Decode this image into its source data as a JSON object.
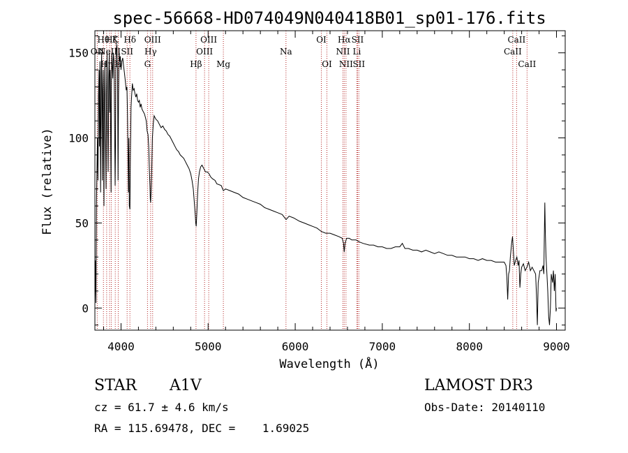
{
  "chart_data": {
    "type": "line",
    "title": "spec-56668-HD074049N040418B01_sp01-176.fits",
    "xlabel": "Wavelength (Å)",
    "ylabel": "Flux (relative)",
    "xlim": [
      3700,
      9100
    ],
    "ylim": [
      -13,
      163
    ],
    "xticks": [
      4000,
      5000,
      6000,
      7000,
      8000,
      9000
    ],
    "yticks": [
      0,
      50,
      100,
      150
    ],
    "line_color": "#000000",
    "marker_color": "#b22222",
    "spectral_lines": [
      {
        "w": 3727,
        "label": "OII",
        "row": 2
      },
      {
        "w": 3798,
        "label": "Hθ",
        "row": 1
      },
      {
        "w": 3835,
        "label": "Hη",
        "row": 3
      },
      {
        "w": 3869,
        "label": "NeIII",
        "row": 2
      },
      {
        "w": 3889,
        "label": "Hζ",
        "row": 1
      },
      {
        "w": 3934,
        "label": "K",
        "row": 1
      },
      {
        "w": 3968,
        "label": "H",
        "row": 3
      },
      {
        "w": 4070,
        "label": "SII",
        "row": 2
      },
      {
        "w": 4102,
        "label": "Hδ",
        "row": 1
      },
      {
        "w": 4304,
        "label": "G",
        "row": 3
      },
      {
        "w": 4340,
        "label": "Hγ",
        "row": 2
      },
      {
        "w": 4363,
        "label": "OIII",
        "row": 1
      },
      {
        "w": 4861,
        "label": "Hβ",
        "row": 3
      },
      {
        "w": 4959,
        "label": "OIII",
        "row": 2
      },
      {
        "w": 5007,
        "label": "OIII",
        "row": 1
      },
      {
        "w": 5175,
        "label": "Mg",
        "row": 3
      },
      {
        "w": 5894,
        "label": "Na",
        "row": 2
      },
      {
        "w": 6300,
        "label": "OI",
        "row": 1
      },
      {
        "w": 6364,
        "label": "OI",
        "row": 3
      },
      {
        "w": 6548,
        "label": "NII",
        "row": 2
      },
      {
        "w": 6563,
        "label": "Hα",
        "row": 1
      },
      {
        "w": 6583,
        "label": "NII",
        "row": 3
      },
      {
        "w": 6708,
        "label": "Li",
        "row": 2
      },
      {
        "w": 6716,
        "label": "SII",
        "row": 1
      },
      {
        "w": 6731,
        "label": "SII",
        "row": 3
      },
      {
        "w": 8498,
        "label": "CaII",
        "row": 2
      },
      {
        "w": 8542,
        "label": "CaII",
        "row": 1
      },
      {
        "w": 8662,
        "label": "CaII",
        "row": 3
      }
    ],
    "spectrum": [
      [
        3700,
        5
      ],
      [
        3705,
        28
      ],
      [
        3712,
        3
      ],
      [
        3718,
        60
      ],
      [
        3725,
        85
      ],
      [
        3730,
        100
      ],
      [
        3735,
        75
      ],
      [
        3742,
        125
      ],
      [
        3748,
        140
      ],
      [
        3752,
        95
      ],
      [
        3758,
        145
      ],
      [
        3762,
        105
      ],
      [
        3766,
        68
      ],
      [
        3772,
        138
      ],
      [
        3778,
        150
      ],
      [
        3782,
        110
      ],
      [
        3786,
        75
      ],
      [
        3790,
        128
      ],
      [
        3795,
        140
      ],
      [
        3800,
        88
      ],
      [
        3804,
        60
      ],
      [
        3808,
        118
      ],
      [
        3815,
        145
      ],
      [
        3822,
        100
      ],
      [
        3828,
        70
      ],
      [
        3834,
        125
      ],
      [
        3840,
        150
      ],
      [
        3846,
        108
      ],
      [
        3852,
        80
      ],
      [
        3858,
        135
      ],
      [
        3865,
        150
      ],
      [
        3870,
        115
      ],
      [
        3876,
        140
      ],
      [
        3882,
        95
      ],
      [
        3886,
        68
      ],
      [
        3890,
        130
      ],
      [
        3895,
        150
      ],
      [
        3900,
        142
      ],
      [
        3906,
        135
      ],
      [
        3912,
        150
      ],
      [
        3920,
        145
      ],
      [
        3926,
        110
      ],
      [
        3932,
        72
      ],
      [
        3936,
        95
      ],
      [
        3940,
        140
      ],
      [
        3946,
        152
      ],
      [
        3952,
        155
      ],
      [
        3960,
        140
      ],
      [
        3966,
        75
      ],
      [
        3972,
        125
      ],
      [
        3978,
        150
      ],
      [
        3985,
        145
      ],
      [
        3992,
        148
      ],
      [
        4000,
        140
      ],
      [
        4010,
        145
      ],
      [
        4020,
        147
      ],
      [
        4030,
        142
      ],
      [
        4040,
        138
      ],
      [
        4050,
        133
      ],
      [
        4060,
        128
      ],
      [
        4068,
        130
      ],
      [
        4074,
        115
      ],
      [
        4080,
        92
      ],
      [
        4085,
        68
      ],
      [
        4090,
        100
      ],
      [
        4095,
        60
      ],
      [
        4102,
        58
      ],
      [
        4108,
        90
      ],
      [
        4115,
        118
      ],
      [
        4122,
        125
      ],
      [
        4130,
        132
      ],
      [
        4140,
        128
      ],
      [
        4150,
        129
      ],
      [
        4160,
        126
      ],
      [
        4170,
        124
      ],
      [
        4180,
        126
      ],
      [
        4190,
        122
      ],
      [
        4200,
        121
      ],
      [
        4210,
        122
      ],
      [
        4220,
        118
      ],
      [
        4230,
        120
      ],
      [
        4240,
        117
      ],
      [
        4250,
        116
      ],
      [
        4260,
        115
      ],
      [
        4270,
        114
      ],
      [
        4280,
        112
      ],
      [
        4290,
        110
      ],
      [
        4300,
        104
      ],
      [
        4310,
        102
      ],
      [
        4318,
        95
      ],
      [
        4325,
        82
      ],
      [
        4332,
        72
      ],
      [
        4336,
        64
      ],
      [
        4340,
        62
      ],
      [
        4345,
        68
      ],
      [
        4352,
        80
      ],
      [
        4360,
        100
      ],
      [
        4370,
        108
      ],
      [
        4380,
        113
      ],
      [
        4390,
        112
      ],
      [
        4400,
        111
      ],
      [
        4420,
        110
      ],
      [
        4440,
        108
      ],
      [
        4460,
        106
      ],
      [
        4480,
        107
      ],
      [
        4500,
        105
      ],
      [
        4520,
        104
      ],
      [
        4540,
        102
      ],
      [
        4560,
        101
      ],
      [
        4580,
        99
      ],
      [
        4600,
        97
      ],
      [
        4620,
        95
      ],
      [
        4640,
        93
      ],
      [
        4660,
        92
      ],
      [
        4680,
        90
      ],
      [
        4700,
        89
      ],
      [
        4720,
        88
      ],
      [
        4740,
        86
      ],
      [
        4760,
        84
      ],
      [
        4780,
        82
      ],
      [
        4800,
        79
      ],
      [
        4815,
        75
      ],
      [
        4830,
        70
      ],
      [
        4842,
        62
      ],
      [
        4852,
        55
      ],
      [
        4858,
        50
      ],
      [
        4863,
        48
      ],
      [
        4870,
        55
      ],
      [
        4880,
        68
      ],
      [
        4890,
        76
      ],
      [
        4900,
        80
      ],
      [
        4915,
        83
      ],
      [
        4930,
        84
      ],
      [
        4950,
        82
      ],
      [
        4970,
        80
      ],
      [
        4990,
        80
      ],
      [
        5010,
        79
      ],
      [
        5030,
        77
      ],
      [
        5050,
        76
      ],
      [
        5080,
        75
      ],
      [
        5100,
        73
      ],
      [
        5150,
        72
      ],
      [
        5175,
        69
      ],
      [
        5200,
        70
      ],
      [
        5250,
        69
      ],
      [
        5300,
        68
      ],
      [
        5350,
        67
      ],
      [
        5400,
        65
      ],
      [
        5450,
        64
      ],
      [
        5500,
        63
      ],
      [
        5550,
        62
      ],
      [
        5600,
        61
      ],
      [
        5650,
        59
      ],
      [
        5700,
        58
      ],
      [
        5750,
        57
      ],
      [
        5800,
        56
      ],
      [
        5850,
        55
      ],
      [
        5895,
        52
      ],
      [
        5930,
        54
      ],
      [
        5980,
        53
      ],
      [
        6050,
        51
      ],
      [
        6100,
        50
      ],
      [
        6150,
        49
      ],
      [
        6200,
        48
      ],
      [
        6250,
        47
      ],
      [
        6300,
        45
      ],
      [
        6350,
        44
      ],
      [
        6400,
        44
      ],
      [
        6450,
        43
      ],
      [
        6500,
        42
      ],
      [
        6540,
        41
      ],
      [
        6555,
        38
      ],
      [
        6563,
        33
      ],
      [
        6572,
        38
      ],
      [
        6590,
        41
      ],
      [
        6620,
        41
      ],
      [
        6650,
        40
      ],
      [
        6700,
        40
      ],
      [
        6730,
        39
      ],
      [
        6780,
        38
      ],
      [
        6850,
        37
      ],
      [
        6900,
        37
      ],
      [
        6950,
        36
      ],
      [
        7000,
        36
      ],
      [
        7050,
        35
      ],
      [
        7100,
        35
      ],
      [
        7150,
        36
      ],
      [
        7200,
        36
      ],
      [
        7230,
        38
      ],
      [
        7260,
        35
      ],
      [
        7300,
        35
      ],
      [
        7350,
        34
      ],
      [
        7400,
        34
      ],
      [
        7450,
        33
      ],
      [
        7500,
        34
      ],
      [
        7550,
        33
      ],
      [
        7600,
        32
      ],
      [
        7650,
        33
      ],
      [
        7700,
        32
      ],
      [
        7750,
        31
      ],
      [
        7800,
        31
      ],
      [
        7850,
        30
      ],
      [
        7900,
        30
      ],
      [
        7950,
        30
      ],
      [
        8000,
        29
      ],
      [
        8050,
        29
      ],
      [
        8100,
        28
      ],
      [
        8150,
        29
      ],
      [
        8200,
        28
      ],
      [
        8250,
        28
      ],
      [
        8300,
        27
      ],
      [
        8350,
        27
      ],
      [
        8400,
        27
      ],
      [
        8420,
        25
      ],
      [
        8430,
        18
      ],
      [
        8440,
        5
      ],
      [
        8450,
        20
      ],
      [
        8460,
        22
      ],
      [
        8470,
        30
      ],
      [
        8485,
        38
      ],
      [
        8495,
        42
      ],
      [
        8505,
        34
      ],
      [
        8515,
        25
      ],
      [
        8530,
        28
      ],
      [
        8545,
        30
      ],
      [
        8560,
        25
      ],
      [
        8570,
        28
      ],
      [
        8580,
        12
      ],
      [
        8590,
        20
      ],
      [
        8600,
        24
      ],
      [
        8620,
        26
      ],
      [
        8640,
        22
      ],
      [
        8660,
        24
      ],
      [
        8680,
        27
      ],
      [
        8700,
        22
      ],
      [
        8720,
        24
      ],
      [
        8740,
        22
      ],
      [
        8760,
        20
      ],
      [
        8770,
        8
      ],
      [
        8780,
        -10
      ],
      [
        8790,
        15
      ],
      [
        8810,
        22
      ],
      [
        8830,
        22
      ],
      [
        8845,
        25
      ],
      [
        8855,
        20
      ],
      [
        8860,
        40
      ],
      [
        8866,
        62
      ],
      [
        8872,
        45
      ],
      [
        8880,
        30
      ],
      [
        8890,
        20
      ],
      [
        8900,
        10
      ],
      [
        8910,
        -5
      ],
      [
        8920,
        -10
      ],
      [
        8930,
        0
      ],
      [
        8940,
        20
      ],
      [
        8955,
        15
      ],
      [
        8965,
        22
      ],
      [
        8975,
        10
      ],
      [
        8985,
        20
      ],
      [
        8995,
        -2
      ],
      [
        9000,
        0
      ]
    ]
  },
  "info": {
    "object_class": "STAR",
    "subclass": "A1V",
    "survey": "LAMOST DR3",
    "cz": "cz = 61.7 ± 4.6 km/s",
    "obs_date": "Obs-Date: 20140110",
    "coords": "RA = 115.69478, DEC =    1.69025"
  }
}
